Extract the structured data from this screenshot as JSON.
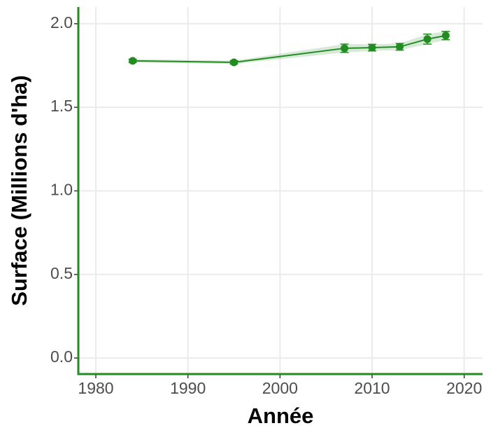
{
  "chart_data": {
    "type": "line",
    "xlabel": "Année",
    "ylabel": "Surface (Millions d'ha)",
    "x": [
      1984,
      1995,
      2007,
      2010,
      2013,
      2016,
      2018
    ],
    "series": [
      {
        "values": [
          1.778,
          1.769,
          1.853,
          1.857,
          1.862,
          1.908,
          1.929
        ],
        "errors": [
          0.01,
          0.01,
          0.025,
          0.02,
          0.02,
          0.03,
          0.025
        ],
        "color": "#228b22"
      }
    ],
    "xlim": [
      1978.1,
      2022
    ],
    "ylim": [
      -0.096,
      2.1
    ],
    "xticks": [
      1980,
      1990,
      2000,
      2010,
      2020
    ],
    "yticks": [
      {
        "value": 0,
        "label": "0.0"
      },
      {
        "value": 0.5,
        "label": "0.5"
      },
      {
        "value": 1,
        "label": "1.0"
      },
      {
        "value": 1.5,
        "label": "1.5"
      },
      {
        "value": 2,
        "label": "2.0"
      }
    ],
    "grid": true
  }
}
